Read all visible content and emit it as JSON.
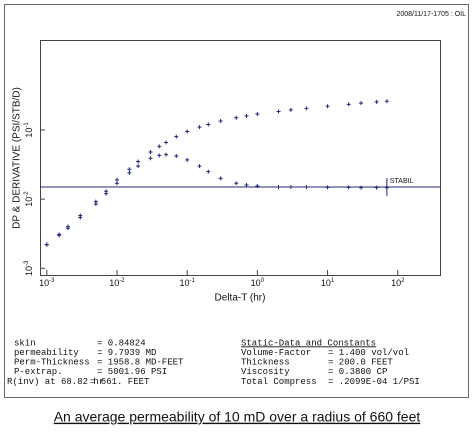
{
  "chart_data": {
    "type": "scatter",
    "stamp": "2008/11/17-1705 : OIL",
    "ylabel": "DP & DERIVATIVE (PSI/STB/D)",
    "xlabel": "Delta-T (hr)",
    "xscale": "log",
    "yscale": "log",
    "xlim": [
      0.0008,
      400
    ],
    "ylim": [
      0.0008,
      2
    ],
    "xticks": [
      {
        "value": 0.001,
        "label": "10",
        "exponent": "-3"
      },
      {
        "value": 0.01,
        "label": "10",
        "exponent": "-2"
      },
      {
        "value": 0.1,
        "label": "10",
        "exponent": "-1"
      },
      {
        "value": 1,
        "label": "10",
        "exponent": "0"
      },
      {
        "value": 10,
        "label": "10",
        "exponent": "1"
      },
      {
        "value": 100,
        "label": "10",
        "exponent": "2"
      }
    ],
    "yticks": [
      {
        "value": 0.001,
        "label": "10",
        "exponent": "-3"
      },
      {
        "value": 0.01,
        "label": "10",
        "exponent": "-2"
      },
      {
        "value": 0.1,
        "label": "10",
        "exponent": "-1"
      }
    ],
    "color": "#1e2a78",
    "x": [
      0.001,
      0.0015,
      0.002,
      0.003,
      0.005,
      0.007,
      0.01,
      0.015,
      0.02,
      0.03,
      0.04,
      0.05,
      0.07,
      0.1,
      0.15,
      0.2,
      0.3,
      0.5,
      0.7,
      1,
      2,
      3,
      5,
      10,
      20,
      30,
      50,
      70
    ],
    "series": [
      {
        "values": [
          0.0022,
          0.0031,
          0.004,
          0.0058,
          0.0092,
          0.013,
          0.019,
          0.027,
          0.035,
          0.048,
          0.058,
          0.066,
          0.08,
          0.095,
          0.11,
          0.12,
          0.135,
          0.15,
          0.16,
          0.17,
          0.185,
          0.195,
          0.205,
          0.22,
          0.235,
          0.245,
          0.255,
          0.26
        ]
      },
      {
        "values": [
          0.0022,
          0.003,
          0.0038,
          0.0054,
          0.0085,
          0.012,
          0.017,
          0.024,
          0.03,
          0.039,
          0.043,
          0.044,
          0.042,
          0.037,
          0.03,
          0.025,
          0.02,
          0.017,
          0.016,
          0.0155,
          0.015,
          0.015,
          0.015,
          0.0148,
          0.0148,
          0.0147,
          0.0147,
          0.0147
        ]
      }
    ],
    "reference_line": {
      "label": "STABIL",
      "value": 0.015,
      "x_end": 70
    }
  },
  "results": [
    [
      "skin",
      "= 0.84824"
    ],
    [
      "permeability",
      "= 9.7939 MD"
    ],
    [
      "Perm-Thickness",
      "= 1958.8 MD-FEET"
    ],
    [
      "P-extrap.",
      "= 5001.96 PSI"
    ],
    [
      "R(inv) at 68.82 hr",
      "= 661. FEET"
    ]
  ],
  "constants": {
    "title": "Static-Data and Constants",
    "rows": [
      [
        "Volume-Factor",
        "= 1.400 vol/vol"
      ],
      [
        "Thickness",
        "= 200.0 FEET"
      ],
      [
        "Viscosity",
        "= 0.3800 CP"
      ],
      [
        "Total Compress",
        "= .2099E-04 1/PSI"
      ]
    ]
  },
  "caption": "An average permeability of 10 mD over a radius of 660 feet"
}
